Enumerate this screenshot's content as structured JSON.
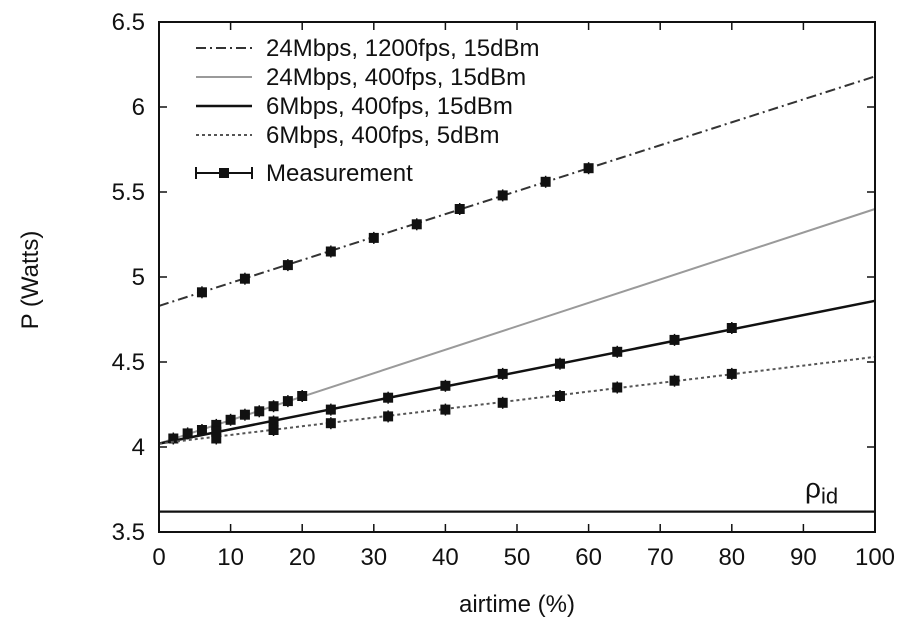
{
  "chart_data": {
    "type": "line",
    "xlabel": "airtime (%)",
    "ylabel": "P (Watts)",
    "xlim": [
      0,
      100
    ],
    "ylim": [
      3.5,
      6.5
    ],
    "xticks": [
      "0",
      "10",
      "20",
      "30",
      "40",
      "50",
      "60",
      "70",
      "80",
      "90",
      "100"
    ],
    "yticks": [
      "3.5",
      "4",
      "4.5",
      "5",
      "5.5",
      "6",
      "6.5"
    ],
    "grid": false,
    "legend_position": "top-left",
    "annotation": {
      "symbol": "ρ",
      "subscript": "id",
      "value": 3.62
    },
    "series": [
      {
        "name": "24Mbps, 1200fps, 15dBm",
        "style": "dash-dot",
        "color": "#333333",
        "line": [
          [
            0,
            4.83
          ],
          [
            100,
            6.18
          ]
        ],
        "measurements": [
          [
            6,
            4.91
          ],
          [
            12,
            4.99
          ],
          [
            18,
            5.07
          ],
          [
            24,
            5.15
          ],
          [
            30,
            5.23
          ],
          [
            36,
            5.31
          ],
          [
            42,
            5.4
          ],
          [
            48,
            5.48
          ],
          [
            54,
            5.56
          ],
          [
            60,
            5.64
          ]
        ]
      },
      {
        "name": "24Mbps, 400fps, 15dBm",
        "style": "solid-gray",
        "color": "#9a9a9a",
        "line": [
          [
            0,
            4.02
          ],
          [
            100,
            5.4
          ]
        ],
        "measurements": [
          [
            2,
            4.05
          ],
          [
            4,
            4.08
          ],
          [
            6,
            4.1
          ],
          [
            8,
            4.13
          ],
          [
            10,
            4.16
          ],
          [
            12,
            4.19
          ],
          [
            14,
            4.21
          ],
          [
            16,
            4.24
          ],
          [
            18,
            4.27
          ],
          [
            20,
            4.3
          ]
        ]
      },
      {
        "name": "6Mbps, 400fps, 15dBm",
        "style": "solid",
        "color": "#111111",
        "line": [
          [
            0,
            4.02
          ],
          [
            100,
            4.86
          ]
        ],
        "measurements": [
          [
            8,
            4.09
          ],
          [
            16,
            4.15
          ],
          [
            24,
            4.22
          ],
          [
            32,
            4.29
          ],
          [
            40,
            4.36
          ],
          [
            48,
            4.43
          ],
          [
            56,
            4.49
          ],
          [
            64,
            4.56
          ],
          [
            72,
            4.63
          ],
          [
            80,
            4.7
          ]
        ]
      },
      {
        "name": "6Mbps, 400fps, 5dBm",
        "style": "dotted",
        "color": "#555555",
        "line": [
          [
            0,
            4.02
          ],
          [
            100,
            4.53
          ]
        ],
        "measurements": [
          [
            8,
            4.05
          ],
          [
            16,
            4.1
          ],
          [
            24,
            4.14
          ],
          [
            32,
            4.18
          ],
          [
            40,
            4.22
          ],
          [
            48,
            4.26
          ],
          [
            56,
            4.3
          ],
          [
            64,
            4.35
          ],
          [
            72,
            4.39
          ],
          [
            80,
            4.43
          ]
        ]
      }
    ],
    "measurement_label": "Measurement"
  }
}
